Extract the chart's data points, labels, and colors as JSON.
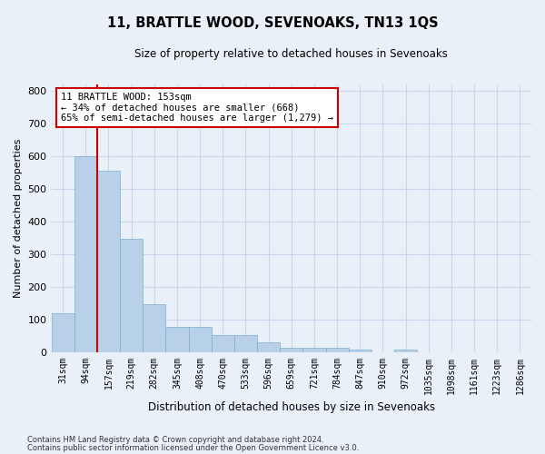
{
  "title": "11, BRATTLE WOOD, SEVENOAKS, TN13 1QS",
  "subtitle": "Size of property relative to detached houses in Sevenoaks",
  "xlabel": "Distribution of detached houses by size in Sevenoaks",
  "ylabel": "Number of detached properties",
  "categories": [
    "31sqm",
    "94sqm",
    "157sqm",
    "219sqm",
    "282sqm",
    "345sqm",
    "408sqm",
    "470sqm",
    "533sqm",
    "596sqm",
    "659sqm",
    "721sqm",
    "784sqm",
    "847sqm",
    "910sqm",
    "972sqm",
    "1035sqm",
    "1098sqm",
    "1161sqm",
    "1223sqm",
    "1286sqm"
  ],
  "values": [
    120,
    600,
    555,
    347,
    147,
    78,
    78,
    52,
    52,
    30,
    14,
    13,
    13,
    7,
    0,
    7,
    0,
    0,
    0,
    0,
    0
  ],
  "bar_color": "#b8d0e8",
  "bar_edge_color": "#7aafd4",
  "grid_color": "#c8d8ea",
  "background_color": "#eaf0f8",
  "annotation_line1": "11 BRATTLE WOOD: 153sqm",
  "annotation_line2": "← 34% of detached houses are smaller (668)",
  "annotation_line3": "65% of semi-detached houses are larger (1,279) →",
  "annotation_box_color": "#ffffff",
  "annotation_box_edge": "#cc0000",
  "property_line_color": "#cc0000",
  "property_line_x": 1.5,
  "ylim": [
    0,
    820
  ],
  "yticks": [
    0,
    100,
    200,
    300,
    400,
    500,
    600,
    700,
    800
  ],
  "footnote1": "Contains HM Land Registry data © Crown copyright and database right 2024.",
  "footnote2": "Contains public sector information licensed under the Open Government Licence v3.0."
}
